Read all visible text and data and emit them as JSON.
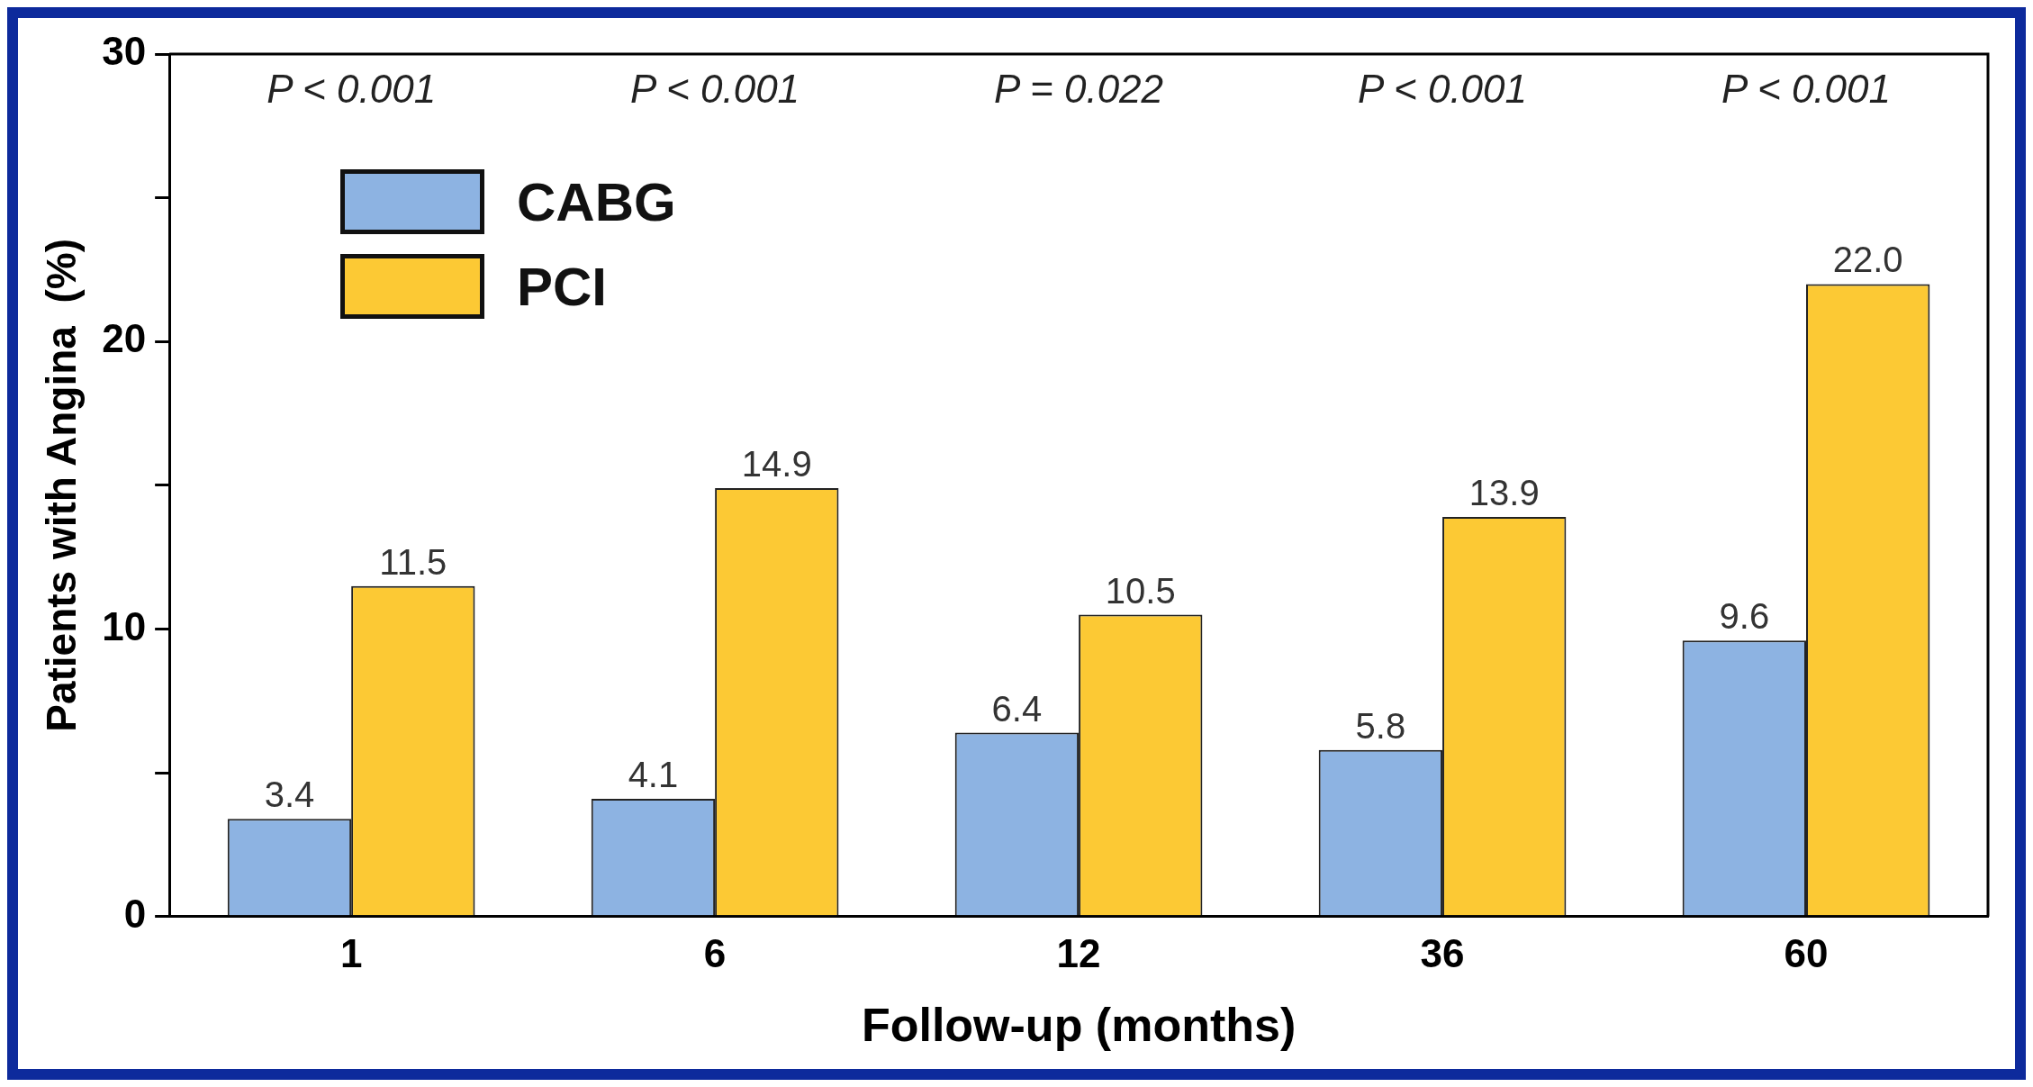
{
  "chart_data": {
    "type": "bar",
    "xlabel": "Follow-up (months)",
    "ylabel": "Patients with Angina  (%)",
    "categories": [
      "1",
      "6",
      "12",
      "36",
      "60"
    ],
    "series": [
      {
        "name": "CABG",
        "color": "#8db3e2",
        "values": [
          3.4,
          4.1,
          6.4,
          5.8,
          9.6
        ],
        "value_labels": [
          "3.4",
          "4.1",
          "6.4",
          "5.8",
          "9.6"
        ]
      },
      {
        "name": "PCI",
        "color": "#fcc934",
        "values": [
          11.5,
          14.9,
          10.5,
          13.9,
          22.0
        ],
        "value_labels": [
          "11.5",
          "14.9",
          "10.5",
          "13.9",
          "22.0"
        ]
      }
    ],
    "ylim": [
      0,
      30
    ],
    "yticks": [
      0,
      {
        "value": 5,
        "label": null
      },
      10,
      {
        "value": 15,
        "label": null
      },
      20,
      {
        "value": 25,
        "label": null
      },
      30
    ],
    "grid": false,
    "legend": "top left",
    "annotations": [
      "P < 0.001",
      "P < 0.001",
      "P = 0.022",
      "P < 0.001",
      "P < 0.001"
    ]
  }
}
